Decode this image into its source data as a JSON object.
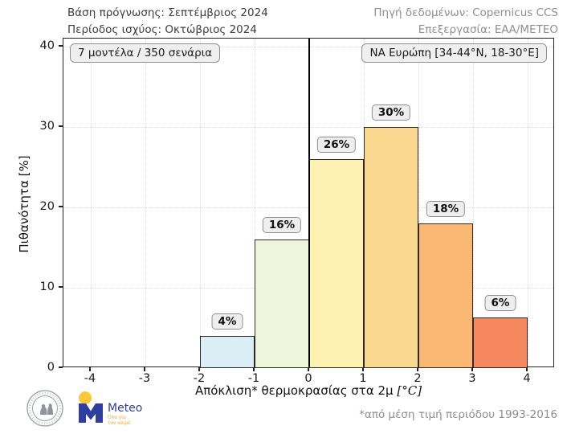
{
  "header": {
    "forecast_base": "Βάση πρόγνωσης: Σεπτέμβριος 2024",
    "validity_period": "Περίοδος ισχύος: Οκτώβριος 2024",
    "data_source": "Πηγή δεδομένων: Copernicus CCS",
    "processing": "Επεξεργασία: ΕΑΑ/ΜΕΤΕΟ"
  },
  "plot_annotations": {
    "models": "7 μοντέλα / 350 σενάρια",
    "region": "ΝΑ Ευρώπη [34-44°N, 18-30°E]"
  },
  "chart_data": {
    "type": "bar",
    "title": "",
    "xlabel": "Απόκλιση* θερμοκρασίας στα 2μ",
    "xlabel_unit": "[°C]",
    "ylabel": "Πιθανότητα [%]",
    "xlim": [
      -4.5,
      4.5
    ],
    "ylim": [
      0,
      41
    ],
    "x_ticks": [
      -4,
      -3,
      -2,
      -1,
      0,
      1,
      2,
      3,
      4
    ],
    "y_ticks": [
      0,
      10,
      20,
      30,
      40
    ],
    "grid": true,
    "zero_line_x": 0,
    "bins": [
      {
        "from": -2,
        "to": -1,
        "value": 4,
        "label": "4%",
        "color": "#dceef5"
      },
      {
        "from": -1,
        "to": 0,
        "value": 16,
        "label": "16%",
        "color": "#edf6da"
      },
      {
        "from": 0,
        "to": 1,
        "value": 26,
        "label": "26%",
        "color": "#fdf2b2"
      },
      {
        "from": 1,
        "to": 2,
        "value": 30,
        "label": "30%",
        "color": "#fbd890"
      },
      {
        "from": 2,
        "to": 3,
        "value": 18,
        "label": "18%",
        "color": "#fbb873"
      },
      {
        "from": 3,
        "to": 4,
        "value": 6.3,
        "label": "6%",
        "color": "#f5885e"
      }
    ],
    "axis_color": "#222222",
    "grid_color": "#d9d9d9",
    "bar_edge_color": "#2b2b2b"
  },
  "footer": {
    "note": "*από μέση τιμή περιόδου 1993-2016",
    "meteo_wordmark": "Meteo",
    "meteo_tagline_line1": "Όλα για",
    "meteo_tagline_line2": "τον καιρό"
  }
}
